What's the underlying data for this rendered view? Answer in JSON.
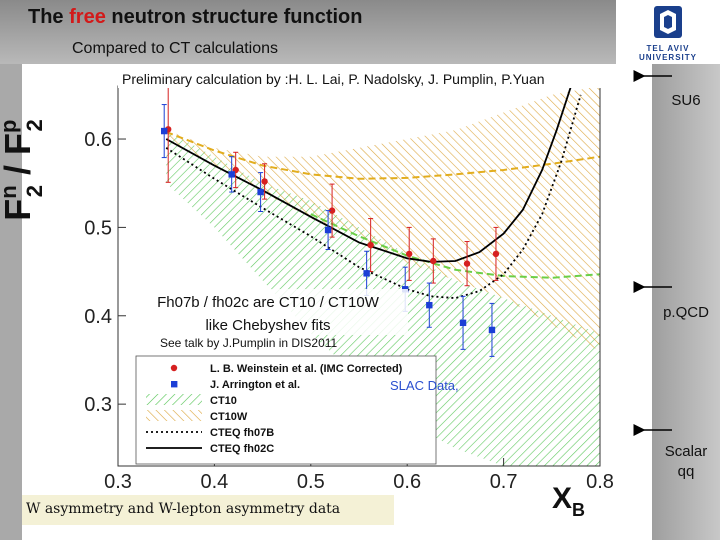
{
  "slide": {
    "title_prefix": "The ",
    "title_highlight": "free",
    "title_suffix": " neutron  structure function",
    "subtitle": "Compared to CT calculations",
    "logo_text": "TEL AVIV UNIVERSITY",
    "footer": "W asymmetry and W-lepton asymmetry data",
    "side_labels": {
      "su6": "SU6",
      "pqcd": "p.QCD",
      "scalar_line1": "Scalar",
      "scalar_line2": "qq"
    }
  },
  "chart_data": {
    "type": "scatter",
    "annotation_top": "Preliminary calculation by :H. L. Lai, P. Nadolsky, J. Pumplin,  P.Yuan",
    "note_fits_line1": "Fh07b / fh02c  are CT10 / CT10W",
    "note_fits_line2": "like Chebyshev fits",
    "note_talk": "See talk by J.Pumplin in DIS2011",
    "note_slac": "SLAC Data,",
    "ylabel_main": "F",
    "ylabel_sup_n": "n",
    "ylabel_sub_2a": "2",
    "ylabel_sep": " / F",
    "ylabel_sup_p": "p",
    "ylabel_sub_2b": "2",
    "xlabel_main": "X",
    "xlabel_sub": "B",
    "xlim": [
      0.3,
      0.8
    ],
    "ylim": [
      0.23,
      0.66
    ],
    "xticks": [
      0.3,
      0.4,
      0.5,
      0.6,
      0.7,
      0.8
    ],
    "xtick_labels": [
      "0.3",
      "0.4",
      "0.5",
      "0.6",
      "0.7",
      "0.8"
    ],
    "yticks": [
      0.3,
      0.4,
      0.5,
      0.6
    ],
    "ytick_labels": [
      "0.3",
      "0.4",
      "0.5",
      "0.6"
    ],
    "legend": [
      {
        "label": "L. B. Weinstein et al. (IMC Corrected)",
        "kind": "marker",
        "color": "#d62020",
        "shape": "circle"
      },
      {
        "label": "J. Arrington et al.",
        "kind": "marker",
        "color": "#1c3fd6",
        "shape": "square"
      },
      {
        "label": "CT10",
        "kind": "band",
        "color": "#4cc24c"
      },
      {
        "label": "CT10W",
        "kind": "band",
        "color": "#e0a030"
      },
      {
        "label": "CTEQ fh07B",
        "kind": "line",
        "color": "#000000",
        "dash": "dotted"
      },
      {
        "label": "CTEQ fh02C",
        "kind": "line",
        "color": "#000000",
        "dash": "solid"
      }
    ],
    "series": [
      {
        "name": "L. B. Weinstein et al. (IMC Corrected)",
        "kind": "points",
        "color": "#d62020",
        "shape": "circle",
        "x": [
          0.35,
          0.42,
          0.45,
          0.52,
          0.56,
          0.6,
          0.625,
          0.66,
          0.69
        ],
        "y": [
          0.611,
          0.565,
          0.552,
          0.519,
          0.48,
          0.47,
          0.462,
          0.459,
          0.47
        ],
        "err": [
          0.06,
          0.02,
          0.02,
          0.03,
          0.03,
          0.03,
          0.025,
          0.025,
          0.03
        ]
      },
      {
        "name": "J. Arrington et al.",
        "kind": "points",
        "color": "#1c3fd6",
        "shape": "square",
        "x": [
          0.35,
          0.42,
          0.45,
          0.52,
          0.56,
          0.6,
          0.625,
          0.66,
          0.69
        ],
        "y": [
          0.609,
          0.56,
          0.54,
          0.497,
          0.448,
          0.43,
          0.412,
          0.392,
          0.384
        ],
        "err": [
          0.03,
          0.02,
          0.022,
          0.022,
          0.025,
          0.025,
          0.025,
          0.03,
          0.03
        ]
      },
      {
        "name": "CT10",
        "kind": "band",
        "color": "#4cc24c",
        "x": [
          0.35,
          0.4,
          0.45,
          0.5,
          0.55,
          0.6,
          0.65,
          0.7,
          0.75,
          0.8
        ],
        "lower": [
          0.55,
          0.5,
          0.44,
          0.38,
          0.33,
          0.28,
          0.25,
          0.23,
          0.23,
          0.23
        ],
        "upper": [
          0.61,
          0.58,
          0.55,
          0.53,
          0.5,
          0.47,
          0.44,
          0.42,
          0.4,
          0.38
        ]
      },
      {
        "name": "CT10W",
        "kind": "band",
        "color": "#e0a030",
        "x": [
          0.35,
          0.4,
          0.45,
          0.5,
          0.55,
          0.6,
          0.65,
          0.7,
          0.75,
          0.8
        ],
        "lower": [
          0.6,
          0.57,
          0.54,
          0.51,
          0.49,
          0.46,
          0.44,
          0.42,
          0.39,
          0.36
        ],
        "upper": [
          0.61,
          0.59,
          0.58,
          0.58,
          0.59,
          0.6,
          0.61,
          0.63,
          0.65,
          0.66
        ]
      },
      {
        "name": "CT10 central",
        "kind": "line",
        "color": "#6ccf46",
        "dash": "dashed",
        "x": [
          0.5,
          0.55,
          0.6,
          0.65,
          0.7,
          0.75,
          0.8
        ],
        "y": [
          0.515,
          0.49,
          0.468,
          0.452,
          0.445,
          0.443,
          0.447
        ]
      },
      {
        "name": "CT10W central",
        "kind": "line",
        "color": "#e2ad1e",
        "dash": "dashed",
        "x": [
          0.35,
          0.4,
          0.45,
          0.5,
          0.55,
          0.6,
          0.65,
          0.7,
          0.75,
          0.8
        ],
        "y": [
          0.608,
          0.587,
          0.57,
          0.56,
          0.555,
          0.556,
          0.56,
          0.565,
          0.572,
          0.58
        ]
      },
      {
        "name": "CTEQ fh07B",
        "kind": "line",
        "color": "#000000",
        "dash": "dotted",
        "x": [
          0.35,
          0.4,
          0.45,
          0.5,
          0.55,
          0.6,
          0.625,
          0.65,
          0.675,
          0.7,
          0.72,
          0.74,
          0.76,
          0.78
        ],
        "y": [
          0.59,
          0.555,
          0.522,
          0.49,
          0.455,
          0.43,
          0.422,
          0.42,
          0.428,
          0.447,
          0.475,
          0.515,
          0.575,
          0.65
        ]
      },
      {
        "name": "CTEQ fh02C",
        "kind": "line",
        "color": "#000000",
        "dash": "solid",
        "x": [
          0.35,
          0.4,
          0.45,
          0.5,
          0.55,
          0.6,
          0.625,
          0.65,
          0.675,
          0.7,
          0.72,
          0.74,
          0.755,
          0.77
        ],
        "y": [
          0.6,
          0.57,
          0.542,
          0.512,
          0.483,
          0.465,
          0.461,
          0.462,
          0.472,
          0.493,
          0.52,
          0.565,
          0.61,
          0.66
        ]
      }
    ]
  }
}
